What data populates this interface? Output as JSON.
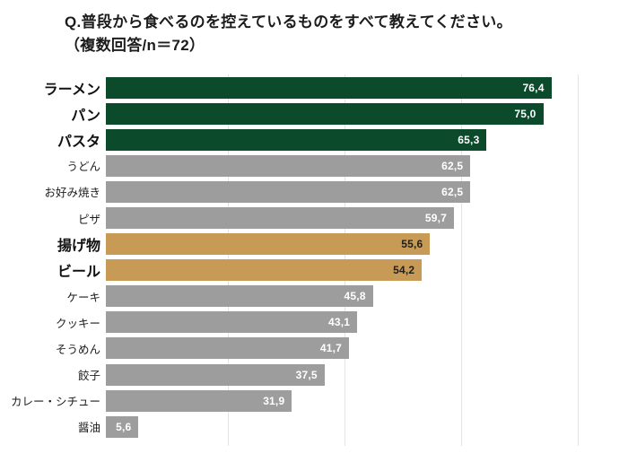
{
  "title": {
    "line1": "Q.普段から食べるのを控えているものをすべて教えてください。",
    "line2": "（複数回答/n＝72）"
  },
  "colors": {
    "green": "#0b4a2b",
    "gold": "#c79a55",
    "gray": "#9d9d9d",
    "gridline": "#e4e4e4",
    "value_text_light": "#ffffff",
    "value_text_dark": "#1f1f1f"
  },
  "chart_data": {
    "type": "bar",
    "orientation": "horizontal",
    "title": "Q.普段から食べるのを控えているものをすべて教えてください。（複数回答/n＝72）",
    "n": 72,
    "xlabel": "",
    "ylabel": "",
    "xlim": [
      0,
      100
    ],
    "grid": true,
    "gridline_values": [
      20,
      40,
      60,
      80
    ],
    "value_format": "decimal-comma",
    "categories": [
      "ラーメン",
      "パン",
      "パスタ",
      "うどん",
      "お好み焼き",
      "ピザ",
      "揚げ物",
      "ビール",
      "ケーキ",
      "クッキー",
      "そうめん",
      "餃子",
      "カレー・シチュー",
      "醤油"
    ],
    "values": [
      76.4,
      75.0,
      65.3,
      62.5,
      62.5,
      59.7,
      55.6,
      54.2,
      45.8,
      43.1,
      41.7,
      37.5,
      31.9,
      5.6
    ],
    "items": [
      {
        "label": "ラーメン",
        "value": 76.4,
        "value_label": "76,4",
        "color": "green",
        "emphasis": true
      },
      {
        "label": "パン",
        "value": 75.0,
        "value_label": "75,0",
        "color": "green",
        "emphasis": true
      },
      {
        "label": "パスタ",
        "value": 65.3,
        "value_label": "65,3",
        "color": "green",
        "emphasis": true
      },
      {
        "label": "うどん",
        "value": 62.5,
        "value_label": "62,5",
        "color": "gray",
        "emphasis": false
      },
      {
        "label": "お好み焼き",
        "value": 62.5,
        "value_label": "62,5",
        "color": "gray",
        "emphasis": false
      },
      {
        "label": "ピザ",
        "value": 59.7,
        "value_label": "59,7",
        "color": "gray",
        "emphasis": false
      },
      {
        "label": "揚げ物",
        "value": 55.6,
        "value_label": "55,6",
        "color": "gold",
        "emphasis": true
      },
      {
        "label": "ビール",
        "value": 54.2,
        "value_label": "54,2",
        "color": "gold",
        "emphasis": true
      },
      {
        "label": "ケーキ",
        "value": 45.8,
        "value_label": "45,8",
        "color": "gray",
        "emphasis": false
      },
      {
        "label": "クッキー",
        "value": 43.1,
        "value_label": "43,1",
        "color": "gray",
        "emphasis": false
      },
      {
        "label": "そうめん",
        "value": 41.7,
        "value_label": "41,7",
        "color": "gray",
        "emphasis": false
      },
      {
        "label": "餃子",
        "value": 37.5,
        "value_label": "37,5",
        "color": "gray",
        "emphasis": false
      },
      {
        "label": "カレー・シチュー",
        "value": 31.9,
        "value_label": "31,9",
        "color": "gray",
        "emphasis": false
      },
      {
        "label": "醤油",
        "value": 5.6,
        "value_label": "5,6",
        "color": "gray",
        "emphasis": false
      }
    ]
  }
}
